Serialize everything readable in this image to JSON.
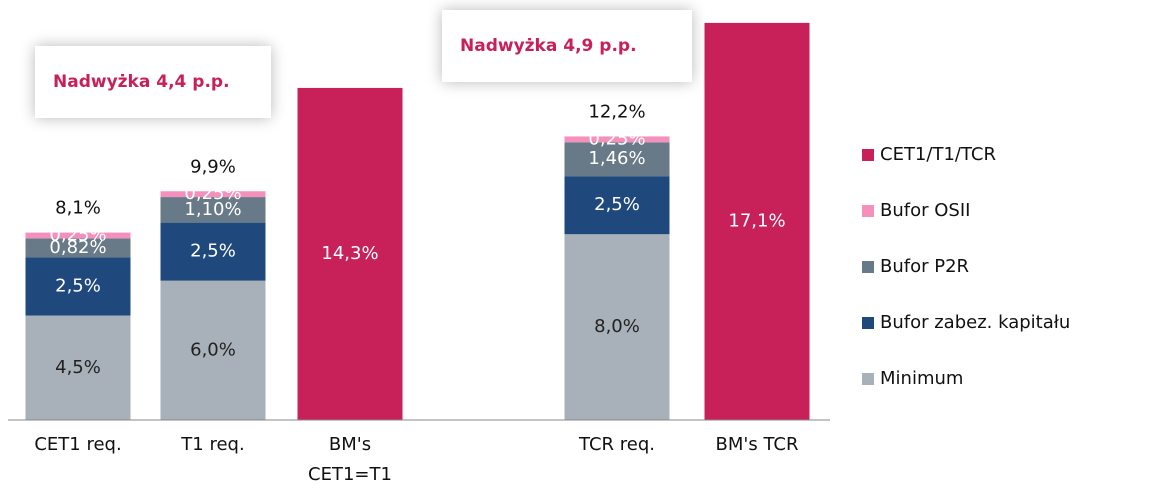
{
  "chart_data": {
    "type": "stacked_bar",
    "categories": [
      "CET1 req.",
      "T1 req.",
      "BM's CET1=T1",
      null,
      "TCR req.",
      "BM's TCR"
    ],
    "series": [
      {
        "name": "Minimum",
        "color": "#a8b1b9",
        "values": [
          4.5,
          6.0,
          null,
          null,
          8.0,
          null
        ],
        "value_labels": [
          "4,5%",
          "6,0%",
          null,
          null,
          "8,0%",
          null
        ]
      },
      {
        "name": "Bufor zabez. kapitału",
        "color": "#1f497d",
        "values": [
          2.5,
          2.5,
          null,
          null,
          2.5,
          null
        ],
        "value_labels": [
          "2,5%",
          "2,5%",
          null,
          null,
          "2,5%",
          null
        ]
      },
      {
        "name": "Bufor P2R",
        "color": "#687a87",
        "values": [
          0.82,
          1.1,
          null,
          null,
          1.46,
          null
        ],
        "value_labels": [
          "0,82%",
          "1,10%",
          null,
          null,
          "1,46%",
          null
        ]
      },
      {
        "name": "Bufor OSII",
        "color": "#f490bb",
        "values": [
          0.25,
          0.25,
          null,
          null,
          0.25,
          null
        ],
        "value_labels": [
          "0,25%",
          "0,25%",
          null,
          null,
          "0,25%",
          null
        ]
      },
      {
        "name": "CET1/T1/TCR",
        "color": "#c8215a",
        "values": [
          null,
          null,
          14.3,
          null,
          null,
          17.1
        ],
        "value_labels": [
          null,
          null,
          "14,3%",
          null,
          null,
          "17,1%"
        ]
      }
    ],
    "totals": [
      8.1,
      9.9,
      null,
      null,
      12.2,
      null
    ],
    "total_labels": [
      "8,1%",
      "9,9%",
      null,
      null,
      "12,2%",
      null
    ],
    "annotations": [
      "Nadwyżka 4,4 p.p.",
      "Nadwyżka 4,9 p.p."
    ],
    "ylim": [
      0,
      18
    ]
  }
}
